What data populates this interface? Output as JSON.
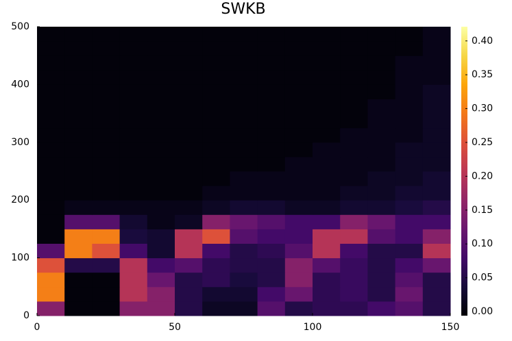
{
  "chart_data": {
    "type": "heatmap",
    "title": "SWKB",
    "xlim": [
      0,
      150
    ],
    "xticks": [
      0,
      50,
      100,
      150
    ],
    "ylim": [
      0,
      500
    ],
    "yticks": [
      0,
      100,
      200,
      300,
      400,
      500
    ],
    "colormap": "inferno",
    "clim": [
      -0.006,
      0.421
    ],
    "cticks": [
      {
        "value": 0,
        "label": "0.00"
      },
      0.05,
      {
        "value": 0.1,
        "label": "0.10"
      },
      0.15,
      {
        "value": 0.2,
        "label": "0.20"
      },
      0.25,
      {
        "value": 0.3,
        "label": "0.30"
      },
      0.35,
      {
        "value": 0.4,
        "label": "0.40"
      }
    ],
    "z": [
      [
        0.15,
        0,
        0,
        0.15,
        0.15,
        0.05,
        0.02,
        0.02,
        0.1,
        0.05,
        0.06,
        0.06,
        0.08,
        0.1,
        0.05
      ],
      [
        0.3,
        0,
        0,
        0.2,
        0.15,
        0.05,
        0.03,
        0.03,
        0.08,
        0.12,
        0.06,
        0.07,
        0.05,
        0.12,
        0.05
      ],
      [
        0.3,
        0,
        0,
        0.2,
        0.12,
        0.05,
        0.06,
        0.04,
        0.05,
        0.15,
        0.06,
        0.07,
        0.05,
        0.1,
        0.05
      ],
      [
        0.25,
        0.05,
        0.05,
        0.2,
        0.08,
        0.1,
        0.06,
        0.05,
        0.05,
        0.15,
        0.1,
        0.07,
        0.05,
        0.08,
        0.12
      ],
      [
        0.1,
        0.3,
        0.25,
        0.08,
        0.03,
        0.2,
        0.08,
        0.05,
        0.06,
        0.1,
        0.2,
        0.08,
        0.05,
        0.05,
        0.2
      ],
      [
        0,
        0.3,
        0.3,
        0.04,
        0.03,
        0.2,
        0.25,
        0.1,
        0.08,
        0.08,
        0.2,
        0.2,
        0.1,
        0.08,
        0.15
      ],
      [
        0,
        0.1,
        0.1,
        0.03,
        0.01,
        0.02,
        0.15,
        0.12,
        0.1,
        0.08,
        0.08,
        0.15,
        0.12,
        0.08,
        0.08
      ],
      [
        0,
        0.01,
        0.01,
        0.01,
        0.01,
        0.01,
        0.02,
        0.03,
        0.03,
        0.02,
        0.02,
        0.03,
        0.03,
        0.04,
        0.05
      ],
      [
        0,
        0,
        0,
        0,
        0,
        0,
        0.01,
        0.01,
        0.01,
        0.01,
        0.01,
        0.02,
        0.02,
        0.03,
        0.03
      ],
      [
        0,
        0,
        0,
        0,
        0,
        0,
        0,
        0.01,
        0.01,
        0.01,
        0.01,
        0.01,
        0.02,
        0.02,
        0.03
      ],
      [
        0,
        0,
        0,
        0,
        0,
        0,
        0,
        0,
        0,
        0.01,
        0.01,
        0.01,
        0.01,
        0.02,
        0.02
      ],
      [
        0,
        0,
        0,
        0,
        0,
        0,
        0,
        0,
        0,
        0,
        0.01,
        0.01,
        0.01,
        0.02,
        0.02
      ],
      [
        0,
        0,
        0,
        0,
        0,
        0,
        0,
        0,
        0,
        0,
        0,
        0.01,
        0.01,
        0.01,
        0.02
      ],
      [
        0,
        0,
        0,
        0,
        0,
        0,
        0,
        0,
        0,
        0,
        0,
        0,
        0.01,
        0.01,
        0.02
      ],
      [
        0,
        0,
        0,
        0,
        0,
        0,
        0,
        0,
        0,
        0,
        0,
        0,
        0.01,
        0.01,
        0.02
      ],
      [
        0,
        0,
        0,
        0,
        0,
        0,
        0,
        0,
        0,
        0,
        0,
        0,
        0,
        0.01,
        0.02
      ],
      [
        0,
        0,
        0,
        0,
        0,
        0,
        0,
        0,
        0,
        0,
        0,
        0,
        0,
        0.01,
        0.01
      ],
      [
        0,
        0,
        0,
        0,
        0,
        0,
        0,
        0,
        0,
        0,
        0,
        0,
        0,
        0.01,
        0.01
      ],
      [
        0,
        0,
        0,
        0,
        0,
        0,
        0,
        0,
        0,
        0,
        0,
        0,
        0,
        0,
        0.01
      ],
      [
        0,
        0,
        0,
        0,
        0,
        0,
        0,
        0,
        0,
        0,
        0,
        0,
        0,
        0,
        0.01
      ]
    ]
  }
}
